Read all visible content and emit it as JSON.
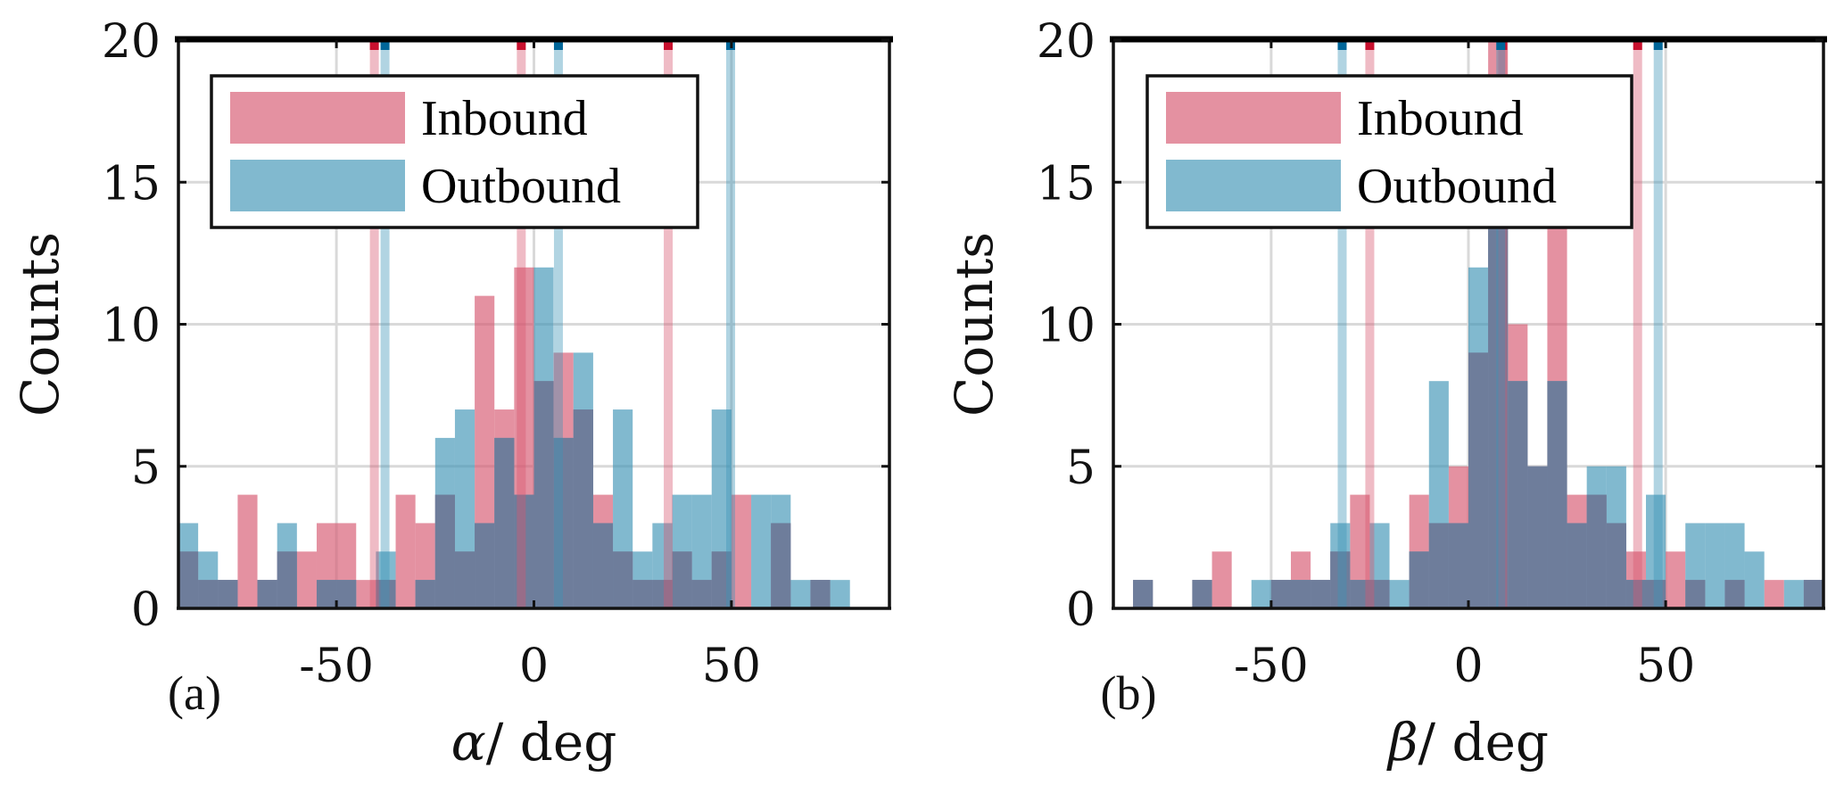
{
  "chart_data": [
    {
      "type": "bar",
      "subtype": "overlaid-histogram",
      "panel_label": "(a)",
      "xlabel_symbol": "α",
      "xlabel_unit": "/ deg",
      "ylabel": "Counts",
      "xlim": [
        -90,
        90
      ],
      "ylim": [
        0,
        20
      ],
      "xticks": [
        -50,
        0,
        50
      ],
      "xtick_labels": [
        "-50",
        "0",
        "50"
      ],
      "yticks": [
        0,
        5,
        10,
        15,
        20
      ],
      "ytick_labels": [
        "0",
        "5",
        "10",
        "15",
        "20"
      ],
      "grid": true,
      "legend_position": "top-left",
      "bin_edges_start": -90,
      "bin_width": 5,
      "series": [
        {
          "name": "Inbound",
          "color": "#d6566e",
          "values": [
            2,
            1,
            1,
            4,
            1,
            2,
            2,
            3,
            3,
            1,
            1,
            4,
            3,
            4,
            2,
            11,
            7,
            12,
            8,
            9,
            7,
            4,
            2,
            1,
            1,
            2,
            1,
            2,
            4,
            0,
            3,
            0,
            1,
            0,
            0,
            0
          ],
          "marker_lines": [
            -40.4,
            -3.2,
            34.0
          ]
        },
        {
          "name": "Outbound",
          "color": "#3d94b6",
          "values": [
            3,
            2,
            1,
            0,
            1,
            3,
            0,
            1,
            1,
            0,
            2,
            0,
            1,
            6,
            7,
            3,
            6,
            4,
            12,
            6,
            9,
            3,
            7,
            2,
            3,
            4,
            4,
            7,
            0,
            4,
            4,
            1,
            1,
            1,
            0,
            0
          ],
          "marker_lines": [
            -37.7,
            6.2,
            49.8
          ]
        }
      ]
    },
    {
      "type": "bar",
      "subtype": "overlaid-histogram",
      "panel_label": "(b)",
      "xlabel_symbol": "β",
      "xlabel_unit": "/ deg",
      "ylabel": "Counts",
      "xlim": [
        -90,
        90
      ],
      "ylim": [
        0,
        20
      ],
      "xticks": [
        -50,
        0,
        50
      ],
      "xtick_labels": [
        "-50",
        "0",
        "50"
      ],
      "yticks": [
        0,
        5,
        10,
        15,
        20
      ],
      "ytick_labels": [
        "0",
        "5",
        "10",
        "15",
        "20"
      ],
      "grid": true,
      "legend_position": "top-left",
      "bin_edges_start": -90,
      "bin_width": 5,
      "series": [
        {
          "name": "Inbound",
          "color": "#d6566e",
          "values": [
            0,
            1,
            0,
            0,
            1,
            2,
            0,
            0,
            1,
            2,
            1,
            2,
            4,
            1,
            0,
            4,
            3,
            5,
            9,
            21,
            10,
            5,
            14,
            4,
            4,
            3,
            2,
            1,
            2,
            1,
            0,
            1,
            0,
            1,
            0,
            1
          ],
          "marker_lines": [
            -25.0,
            8.7,
            42.9
          ]
        },
        {
          "name": "Outbound",
          "color": "#3d94b6",
          "values": [
            0,
            1,
            0,
            0,
            1,
            0,
            0,
            1,
            1,
            1,
            1,
            3,
            1,
            3,
            1,
            2,
            8,
            3,
            12,
            14,
            8,
            5,
            8,
            3,
            5,
            5,
            1,
            4,
            0,
            3,
            3,
            3,
            2,
            0,
            1,
            1
          ],
          "marker_lines": [
            -32.0,
            8.2,
            48.1
          ]
        }
      ]
    }
  ],
  "legend": {
    "inbound_label": "Inbound",
    "outbound_label": "Outbound"
  },
  "colors": {
    "inbound_fill": "#d6566e",
    "outbound_fill": "#3d94b6",
    "inbound_marker": "#c8102e",
    "outbound_marker": "#006699",
    "grid": "#d9d9d9",
    "axis": "#111111"
  }
}
